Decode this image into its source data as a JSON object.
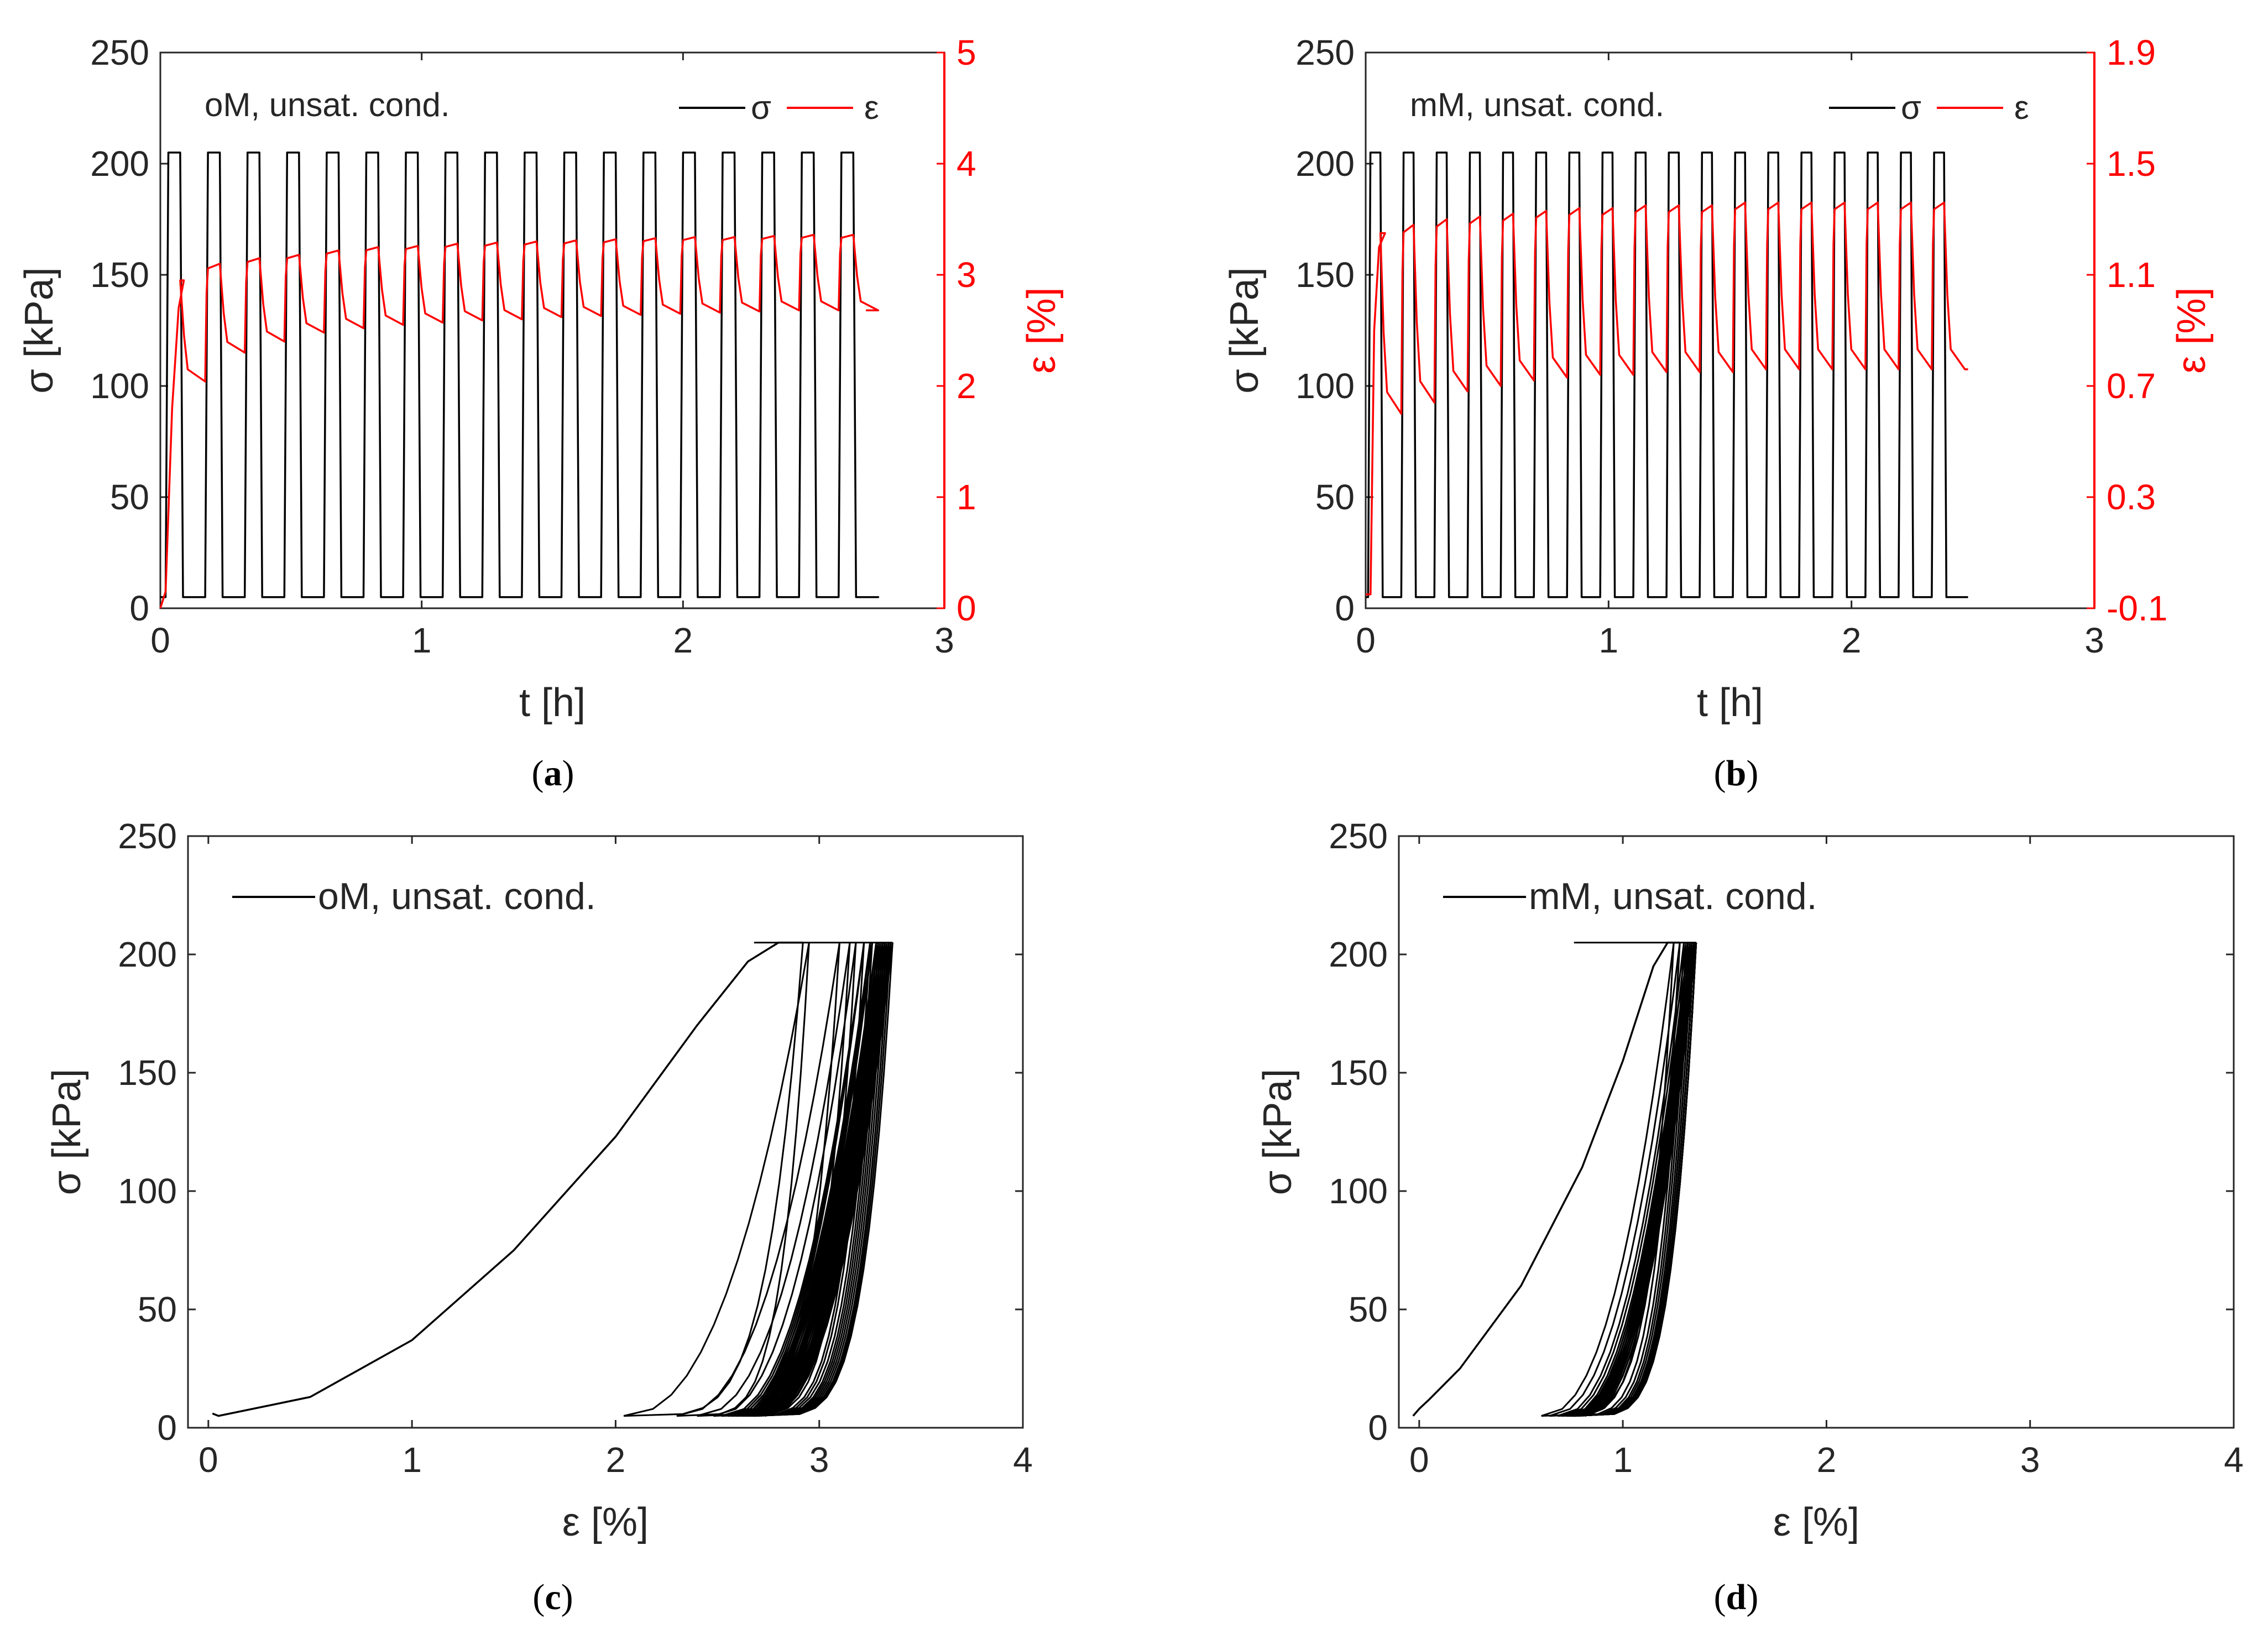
{
  "colors": {
    "stress": "#000000",
    "strain": "#ff0000",
    "axis": "#262626"
  },
  "chart_data": [
    {
      "id": "a",
      "type": "line",
      "caption": "a",
      "annotation": "oM, unsat. cond.",
      "xlabel": "t [h]",
      "ylabel": "σ [kPa]",
      "y2label": "ε [%]",
      "xlim": [
        0,
        3
      ],
      "ylim": [
        0,
        250
      ],
      "y2lim": [
        0,
        5
      ],
      "xticks": [
        "0",
        "1",
        "2",
        "3"
      ],
      "yticks": [
        "0",
        "50",
        "100",
        "150",
        "200",
        "250"
      ],
      "y2ticks": [
        "0",
        "1",
        "2",
        "3",
        "4",
        "5"
      ],
      "legend": {
        "position": "top-right",
        "entries": [
          "σ",
          "ε"
        ]
      },
      "grid": false,
      "series": [
        {
          "name": "σ",
          "axis": "left",
          "color": "#000000",
          "pattern": {
            "t_start": 0.02,
            "period": 0.1515,
            "cycles": 18,
            "t_end": 2.7,
            "high": 205,
            "low": 5
          }
        },
        {
          "name": "ε",
          "axis": "right",
          "color": "#ff0000",
          "pattern": {
            "initial_rise": [
              [
                0.0,
                0.0
              ],
              [
                0.02,
                0.15
              ],
              [
                0.045,
                1.8
              ],
              [
                0.07,
                2.7
              ],
              [
                0.09,
                2.95
              ]
            ],
            "peaks": [
              2.95,
              3.1,
              3.15,
              3.18,
              3.22,
              3.25,
              3.26,
              3.28,
              3.29,
              3.3,
              3.31,
              3.32,
              3.33,
              3.34,
              3.34,
              3.35,
              3.36,
              3.36
            ],
            "troughs": [
              2.04,
              2.3,
              2.4,
              2.48,
              2.52,
              2.55,
              2.57,
              2.59,
              2.6,
              2.62,
              2.63,
              2.64,
              2.65,
              2.66,
              2.67,
              2.68,
              2.68,
              2.68
            ]
          }
        }
      ]
    },
    {
      "id": "b",
      "type": "line",
      "caption": "b",
      "annotation": "mM, unsat. cond.",
      "xlabel": "t [h]",
      "ylabel": "σ [kPa]",
      "y2label": "ε [%]",
      "xlim": [
        0,
        3
      ],
      "ylim": [
        0,
        250
      ],
      "y2lim": [
        -0.1,
        1.9
      ],
      "xticks": [
        "0",
        "1",
        "2",
        "3"
      ],
      "yticks": [
        "0",
        "50",
        "100",
        "150",
        "200",
        "250"
      ],
      "y2ticks": [
        "-0.1",
        "0.3",
        "0.7",
        "1.1",
        "1.5",
        "1.9"
      ],
      "legend": {
        "position": "top-right",
        "entries": [
          "σ",
          "ε"
        ]
      },
      "grid": false,
      "series": [
        {
          "name": "σ",
          "axis": "left",
          "color": "#000000",
          "pattern": {
            "t_start": 0.01,
            "period": 0.1365,
            "cycles": 18,
            "t_end": 2.48,
            "high": 205,
            "low": 5
          }
        },
        {
          "name": "ε",
          "axis": "right",
          "color": "#ff0000",
          "pattern": {
            "initial_rise": [
              [
                0.0,
                -0.05
              ],
              [
                0.02,
                -0.05
              ],
              [
                0.035,
                0.9
              ],
              [
                0.055,
                1.2
              ],
              [
                0.08,
                1.25
              ]
            ],
            "peaks": [
              1.25,
              1.28,
              1.3,
              1.31,
              1.32,
              1.33,
              1.34,
              1.34,
              1.35,
              1.35,
              1.35,
              1.36,
              1.36,
              1.36,
              1.36,
              1.36,
              1.36,
              1.36
            ],
            "troughs": [
              0.6,
              0.64,
              0.68,
              0.7,
              0.72,
              0.73,
              0.74,
              0.74,
              0.75,
              0.75,
              0.75,
              0.76,
              0.76,
              0.76,
              0.76,
              0.76,
              0.76,
              0.76
            ]
          }
        }
      ]
    },
    {
      "id": "c",
      "type": "line",
      "caption": "c",
      "xlabel": "ε [%]",
      "ylabel": "σ [kPa]",
      "xlim": [
        -0.1,
        4
      ],
      "ylim": [
        0,
        250
      ],
      "xticks": [
        "0",
        "1",
        "2",
        "3",
        "4"
      ],
      "yticks": [
        "0",
        "50",
        "100",
        "150",
        "200",
        "250"
      ],
      "legend": {
        "position": "top-left",
        "entries": [
          "oM, unsat. cond."
        ]
      },
      "grid": false,
      "series": [
        {
          "name": "oM, unsat. cond.",
          "color": "#000000",
          "initial_loading": [
            [
              0.02,
              6
            ],
            [
              0.05,
              5
            ],
            [
              0.5,
              13
            ],
            [
              1.0,
              37
            ],
            [
              1.5,
              75
            ],
            [
              2.0,
              123
            ],
            [
              2.4,
              170
            ],
            [
              2.65,
              197
            ],
            [
              2.8,
              205
            ],
            [
              2.92,
              205
            ]
          ],
          "loops": {
            "count": 18,
            "peak_strain": [
              2.95,
              3.1,
              3.15,
              3.18,
              3.22,
              3.25,
              3.26,
              3.28,
              3.29,
              3.3,
              3.31,
              3.32,
              3.33,
              3.34,
              3.34,
              3.35,
              3.36,
              3.36
            ],
            "residual_strain": [
              2.04,
              2.3,
              2.4,
              2.48,
              2.52,
              2.55,
              2.57,
              2.59,
              2.6,
              2.62,
              2.63,
              2.64,
              2.65,
              2.66,
              2.67,
              2.68,
              2.68,
              2.68
            ],
            "low": 5,
            "high": 205
          }
        }
      ]
    },
    {
      "id": "d",
      "type": "line",
      "caption": "d",
      "xlabel": "ε [%]",
      "ylabel": "σ [kPa]",
      "xlim": [
        -0.1,
        4
      ],
      "ylim": [
        0,
        250
      ],
      "xticks": [
        "0",
        "1",
        "2",
        "3",
        "4"
      ],
      "yticks": [
        "0",
        "50",
        "100",
        "150",
        "200",
        "250"
      ],
      "legend": {
        "position": "top-left",
        "entries": [
          "mM, unsat. cond."
        ]
      },
      "grid": false,
      "series": [
        {
          "name": "mM, unsat. cond.",
          "color": "#000000",
          "initial_loading": [
            [
              -0.03,
              5
            ],
            [
              0.0,
              8
            ],
            [
              0.05,
              12
            ],
            [
              0.2,
              25
            ],
            [
              0.5,
              60
            ],
            [
              0.8,
              110
            ],
            [
              1.0,
              155
            ],
            [
              1.15,
              195
            ],
            [
              1.22,
              205
            ],
            [
              1.28,
              205
            ]
          ],
          "loops": {
            "count": 18,
            "peak_strain": [
              1.25,
              1.28,
              1.3,
              1.31,
              1.32,
              1.33,
              1.34,
              1.34,
              1.35,
              1.35,
              1.35,
              1.36,
              1.36,
              1.36,
              1.36,
              1.36,
              1.36,
              1.36
            ],
            "residual_strain": [
              0.6,
              0.64,
              0.68,
              0.7,
              0.72,
              0.73,
              0.74,
              0.74,
              0.75,
              0.75,
              0.75,
              0.76,
              0.76,
              0.76,
              0.76,
              0.76,
              0.76,
              0.76
            ],
            "low": 5,
            "high": 205
          }
        }
      ]
    }
  ]
}
